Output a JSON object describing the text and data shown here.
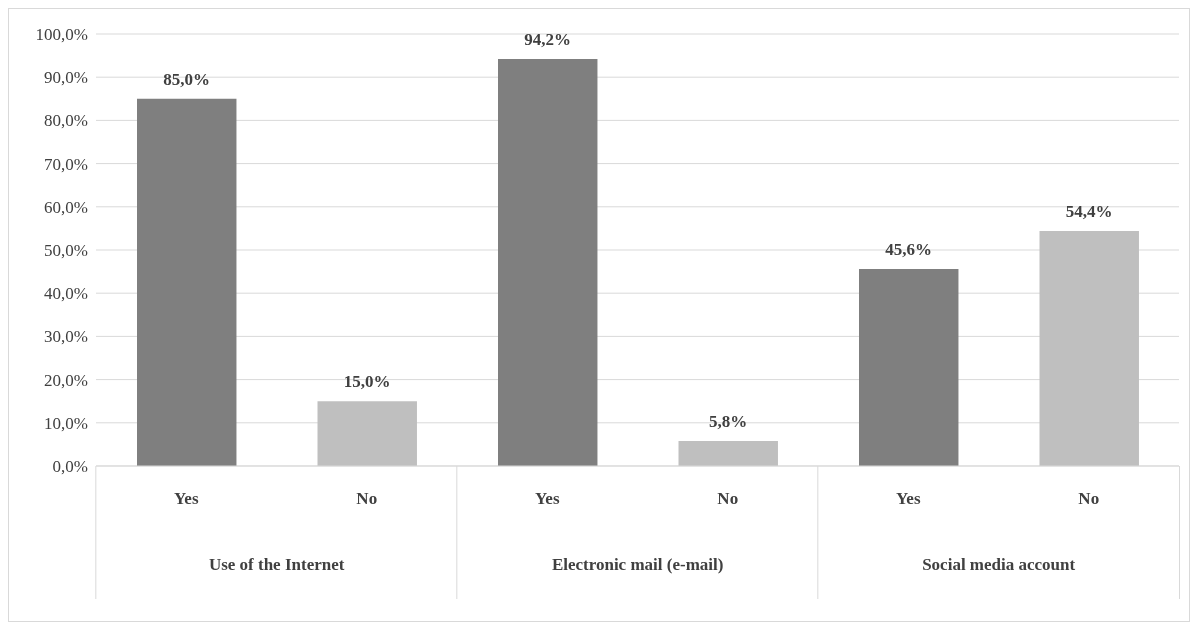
{
  "chart_data": {
    "type": "bar",
    "categories": [
      "Yes",
      "No",
      "Yes",
      "No",
      "Yes",
      "No"
    ],
    "values": [
      85.0,
      15.0,
      94.2,
      5.8,
      45.6,
      54.4
    ],
    "colors": [
      "#7f7f7f",
      "#bfbfbf",
      "#7f7f7f",
      "#bfbfbf",
      "#7f7f7f",
      "#bfbfbf"
    ],
    "value_labels": [
      "85,0%",
      "15,0%",
      "94,2%",
      "5,8%",
      "45,6%",
      "54,4%"
    ],
    "annotations": [
      "Use of the Internet",
      "Electronic mail (e-mail)",
      "Social media account"
    ],
    "ylim": [
      0,
      100
    ],
    "yticks": [
      {
        "value": 0,
        "label": "0,0%"
      },
      {
        "value": 10,
        "label": "10,0%"
      },
      {
        "value": 20,
        "label": "20,0%"
      },
      {
        "value": 30,
        "label": "30,0%"
      },
      {
        "value": 40,
        "label": "40,0%"
      },
      {
        "value": 50,
        "label": "50,0%"
      },
      {
        "value": 60,
        "label": "60,0%"
      },
      {
        "value": 70,
        "label": "70,0%"
      },
      {
        "value": 80,
        "label": "80,0%"
      },
      {
        "value": 90,
        "label": "90,0%"
      },
      {
        "value": 100,
        "label": "100,0%"
      }
    ],
    "grid": "y"
  }
}
